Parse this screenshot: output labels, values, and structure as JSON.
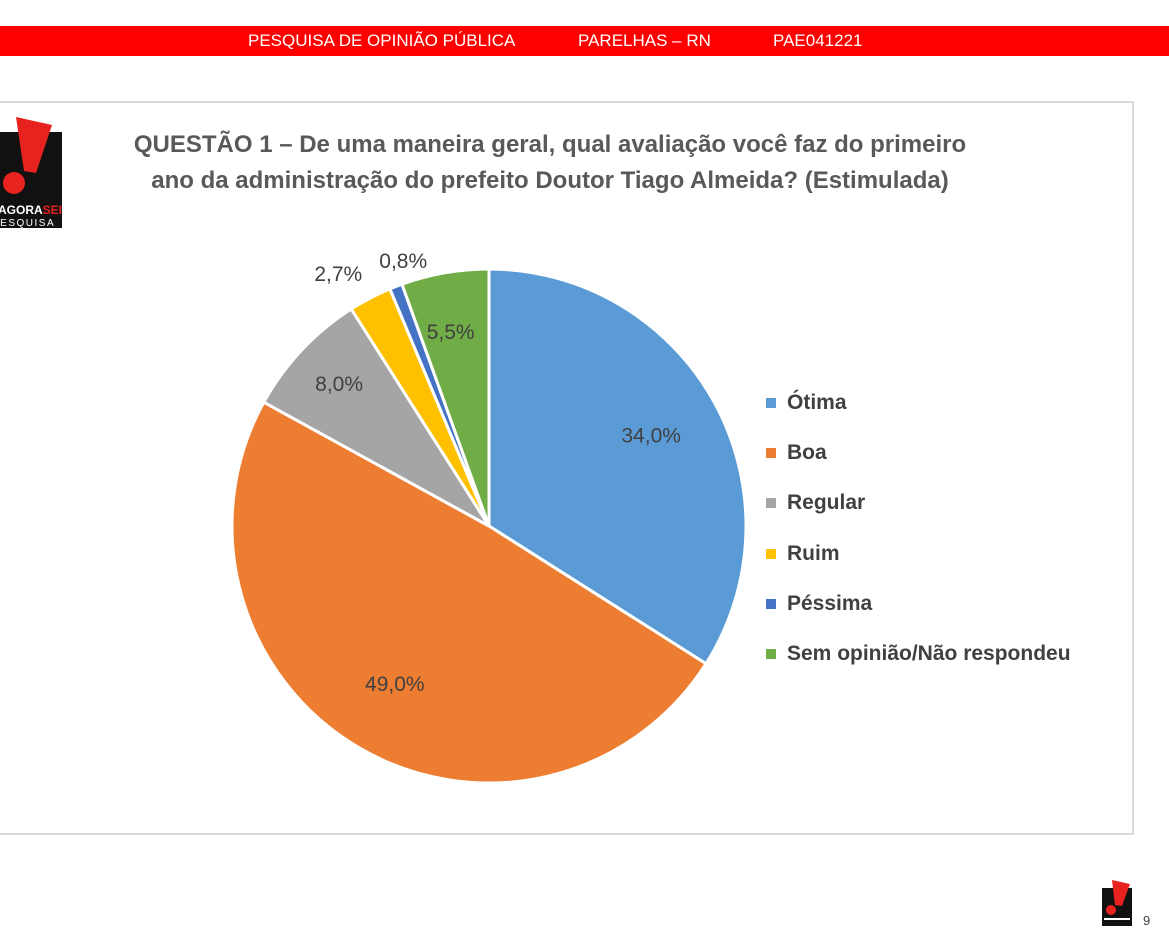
{
  "header": {
    "survey": "PESQUISA DE OPINIÃO PÚBLICA",
    "location": "PARELHAS – RN",
    "code": "PAE041221",
    "color": "#ff0000"
  },
  "logo": {
    "brand_prefix": "AGORA",
    "brand_suffix": "SEI",
    "subtitle": "PESQUISA",
    "icon": "exclamation-logo-icon"
  },
  "page_number": "9",
  "chart_data": {
    "type": "pie",
    "title_line1": "QUESTÃO 1 – De uma maneira geral, qual avaliação você faz do primeiro",
    "title_line2": "ano da administração do prefeito Doutor Tiago Almeida? (Estimulada)",
    "legend_position": "right",
    "slices": [
      {
        "label": "Ótima",
        "value": 34.0,
        "display": "34,0%",
        "color": "#5b9bd5"
      },
      {
        "label": "Boa",
        "value": 49.0,
        "display": "49,0%",
        "color": "#ed7d31"
      },
      {
        "label": "Regular",
        "value": 8.0,
        "display": "8,0%",
        "color": "#a5a5a5"
      },
      {
        "label": "Ruim",
        "value": 2.7,
        "display": "2,7%",
        "color": "#ffc000"
      },
      {
        "label": "Péssima",
        "value": 0.8,
        "display": "0,8%",
        "color": "#4472c4"
      },
      {
        "label": "Sem opinião/Não respondeu",
        "value": 5.5,
        "display": "5,5%",
        "color": "#70ad47"
      }
    ]
  }
}
